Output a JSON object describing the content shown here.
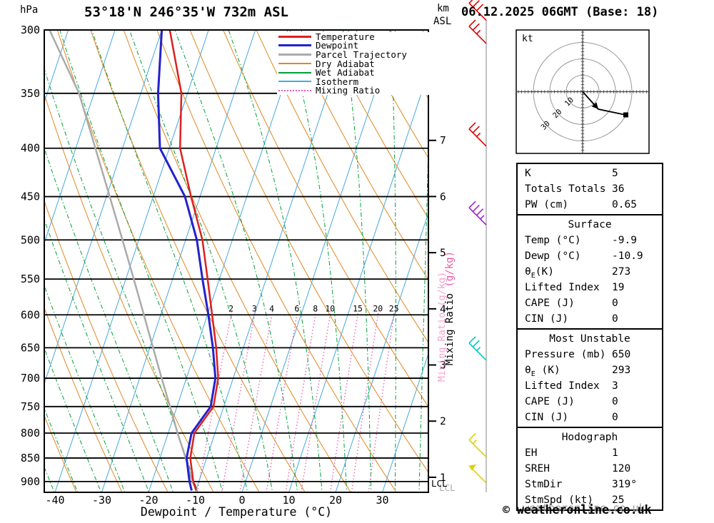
{
  "header": {
    "title": "53°18'N 246°35'W 732m ASL",
    "date": "06.12.2025 06GMT (Base: 18)",
    "pressure_unit": "hPa",
    "alt_unit": "km",
    "alt_unit2": "ASL"
  },
  "axes": {
    "x_title": "Dewpoint / Temperature (°C)",
    "x_ticks": [
      -40,
      -30,
      -20,
      -10,
      0,
      10,
      20,
      30
    ],
    "pressure_ticks": [
      300,
      350,
      400,
      450,
      500,
      550,
      600,
      650,
      700,
      750,
      800,
      850,
      900
    ],
    "km_ticks": [
      1,
      2,
      3,
      4,
      5,
      6,
      7
    ],
    "mixing_axis_text": "Mixing Ratio ",
    "mixing_axis_unit": "(g/kg)",
    "lcl_label": "LCL"
  },
  "legend": [
    {
      "label": "Temperature",
      "color": "#dd2020",
      "weight": 3,
      "style": "solid"
    },
    {
      "label": "Dewpoint",
      "color": "#2222cc",
      "weight": 3,
      "style": "solid"
    },
    {
      "label": "Parcel Trajectory",
      "color": "#aaaaaa",
      "weight": 3,
      "style": "solid"
    },
    {
      "label": "Dry Adiabat",
      "color": "#e08820",
      "weight": 2,
      "style": "solid"
    },
    {
      "label": "Wet Adiabat",
      "color": "#00a038",
      "weight": 2,
      "style": "solid"
    },
    {
      "label": "Isotherm",
      "color": "#44a8e0",
      "weight": 2,
      "style": "solid"
    },
    {
      "label": "Mixing Ratio",
      "color": "#ee55aa",
      "weight": 2,
      "style": "dotted"
    }
  ],
  "chart_data": {
    "type": "skewt-log-p",
    "title": "53°18'N 246°35'W 732m ASL",
    "xlabel": "Dewpoint / Temperature (°C)",
    "x_range_c": [
      -45,
      40
    ],
    "pressure_range_hpa": [
      300,
      924
    ],
    "isotherm_step_c": 10,
    "dry_adiabat_step_c": 10,
    "wet_adiabat_step_c": 5,
    "mixing_ratio_lines": [
      2,
      3,
      4,
      6,
      8,
      10,
      15,
      20,
      25
    ],
    "sounding": {
      "pressure": [
        920,
        900,
        850,
        800,
        750,
        700,
        650,
        600,
        550,
        500,
        450,
        400,
        350,
        300
      ],
      "temperature": [
        -9.9,
        -11.2,
        -13.5,
        -14.4,
        -12.2,
        -13.2,
        -15.8,
        -19.0,
        -22.5,
        -26.4,
        -31.9,
        -37.7,
        -41.3,
        -48.3
      ],
      "dewpoint": [
        -10.9,
        -12.0,
        -14.3,
        -15.0,
        -12.8,
        -13.8,
        -16.5,
        -19.8,
        -23.6,
        -27.6,
        -33.2,
        -42.0,
        -46.3,
        -50.0
      ],
      "parcel": [
        -9.9,
        -11.4,
        -14.5,
        -18.0,
        -21.5,
        -25.3,
        -29.3,
        -33.6,
        -38.3,
        -43.5,
        -49.3,
        -55.8,
        -63.2,
        -74.0
      ]
    },
    "wind_barbs": [
      {
        "pressure": 293,
        "color": "#e00000",
        "full": 3,
        "half": 0,
        "flag": false
      },
      {
        "pressure": 310,
        "color": "#e00000",
        "full": 2,
        "half": 1,
        "flag": false
      },
      {
        "pressure": 398,
        "color": "#e00000",
        "full": 2,
        "half": 1,
        "flag": false
      },
      {
        "pressure": 482,
        "color": "#a020d0",
        "full": 3,
        "half": 1,
        "flag": false
      },
      {
        "pressure": 670,
        "color": "#00c8c8",
        "full": 2,
        "half": 1,
        "flag": false
      },
      {
        "pressure": 848,
        "color": "#ddd000",
        "full": 1,
        "half": 1,
        "flag": false
      },
      {
        "pressure": 903,
        "color": "#ddd000",
        "full": 0,
        "half": 0,
        "flag": true
      }
    ],
    "colors": {
      "temperature": "#dd2020",
      "dewpoint": "#2222cc",
      "parcel": "#aaaaaa",
      "dry_adiabat": "#e08820",
      "wet_adiabat": "#00a038",
      "isotherm": "#44a8e0",
      "mixing_ratio": "#ee55aa"
    }
  },
  "hodograph": {
    "unit_label": "kt",
    "rings_kt": [
      10,
      20,
      30
    ],
    "storm_dir_deg": 319,
    "storm_speed_kt": 25
  },
  "table": {
    "sections": [
      {
        "title": null,
        "rows": [
          [
            "K",
            "5"
          ],
          [
            "Totals Totals",
            "36"
          ],
          [
            "PW (cm)",
            "0.65"
          ]
        ]
      },
      {
        "title": "Surface",
        "rows": [
          [
            "Temp (°C)",
            "-9.9"
          ],
          [
            "Dewp (°C)",
            "-10.9"
          ],
          [
            "θ_E(K)",
            "273"
          ],
          [
            "Lifted Index",
            "19"
          ],
          [
            "CAPE (J)",
            "0"
          ],
          [
            "CIN (J)",
            "0"
          ]
        ]
      },
      {
        "title": "Most Unstable",
        "rows": [
          [
            "Pressure (mb)",
            "650"
          ],
          [
            "θ_E (K)",
            "293"
          ],
          [
            "Lifted Index",
            "3"
          ],
          [
            "CAPE (J)",
            "0"
          ],
          [
            "CIN (J)",
            "0"
          ]
        ]
      },
      {
        "title": "Hodograph",
        "rows": [
          [
            "EH",
            "1"
          ],
          [
            "SREH",
            "120"
          ],
          [
            "StmDir",
            "319°"
          ],
          [
            "StmSpd (kt)",
            "25"
          ]
        ]
      }
    ]
  },
  "footer": {
    "copyright": "© weatheronline.co.uk",
    "watermark": "weatheronline.co.uk"
  }
}
